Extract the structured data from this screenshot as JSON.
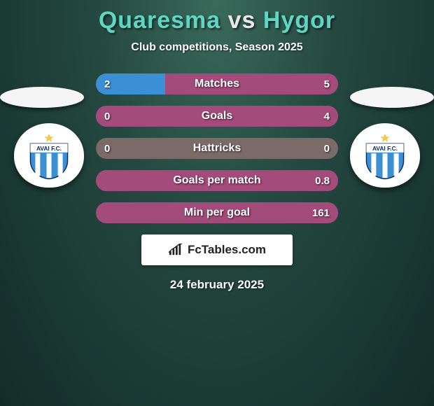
{
  "title": {
    "player1": "Quaresma",
    "vs": "vs",
    "player2": "Hygor",
    "color1": "#5dd6c4",
    "color_vs": "#e8e8e8",
    "color2": "#5dd6c4"
  },
  "subtitle": "Club competitions, Season 2025",
  "colors": {
    "left_bar": "#3b8fd4",
    "right_bar": "#a34b7a",
    "neutral_bar": "#7a6a68",
    "row_bg": "#7a6a68"
  },
  "rows": [
    {
      "label": "Matches",
      "left": "2",
      "right": "5",
      "left_pct": 28.6,
      "right_pct": 71.4,
      "left_color": "#3b8fd4",
      "right_color": "#a34b7a"
    },
    {
      "label": "Goals",
      "left": "0",
      "right": "4",
      "left_pct": 0,
      "right_pct": 100,
      "left_color": "#3b8fd4",
      "right_color": "#a34b7a"
    },
    {
      "label": "Hattricks",
      "left": "0",
      "right": "0",
      "left_pct": 0,
      "right_pct": 0,
      "left_color": "#7a6a68",
      "right_color": "#7a6a68"
    },
    {
      "label": "Goals per match",
      "left": "",
      "right": "0.8",
      "left_pct": 0,
      "right_pct": 100,
      "left_color": "#3b8fd4",
      "right_color": "#a34b7a"
    },
    {
      "label": "Min per goal",
      "left": "",
      "right": "161",
      "left_pct": 0,
      "right_pct": 100,
      "left_color": "#3b8fd4",
      "right_color": "#a34b7a"
    }
  ],
  "brand": "FcTables.com",
  "date": "24 february 2025",
  "club": {
    "name": "AVAI F.C.",
    "shield_main": "#3b8fd4",
    "shield_stripe": "#ffffff",
    "star": "#f2c94c"
  }
}
